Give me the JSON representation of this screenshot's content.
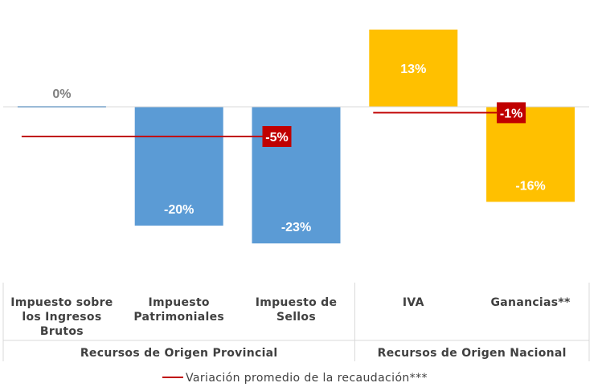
{
  "chart_data": {
    "type": "bar",
    "categories": [
      "Impuesto sobre los Ingresos Brutos",
      "Impuesto Patrimoniales",
      "Impuesto de Sellos",
      "IVA",
      "Ganancias**"
    ],
    "category_lines": [
      [
        "Impuesto sobre",
        "los Ingresos",
        "Brutos"
      ],
      [
        "Impuesto",
        "Patrimoniales"
      ],
      [
        "Impuesto de",
        "Sellos"
      ],
      [
        "IVA"
      ],
      [
        "Ganancias**"
      ]
    ],
    "values": [
      0,
      -20,
      -23,
      13,
      -16
    ],
    "value_labels": [
      "0%",
      "-20%",
      "-23%",
      "13%",
      "-16%"
    ],
    "groups": [
      {
        "name": "Recursos de Origen Provincial",
        "members": [
          0,
          1,
          2
        ],
        "color": "#5B9BD5"
      },
      {
        "name": "Recursos de Origen Nacional",
        "members": [
          3,
          4
        ],
        "color": "#FFC000"
      }
    ],
    "averages": [
      {
        "group": 0,
        "value": -5,
        "label": "-5%"
      },
      {
        "group": 1,
        "value": -1,
        "label": "-1%"
      }
    ],
    "legend": {
      "label": "Variación promedio de la recaudación***",
      "position": "bottom"
    },
    "colors": {
      "provincial": "#5B9BD5",
      "nacional": "#FFC000",
      "average": "#C00000",
      "zero_label": "#7F7F7F"
    },
    "ylim": [
      -35,
      20
    ],
    "unit": "%"
  }
}
